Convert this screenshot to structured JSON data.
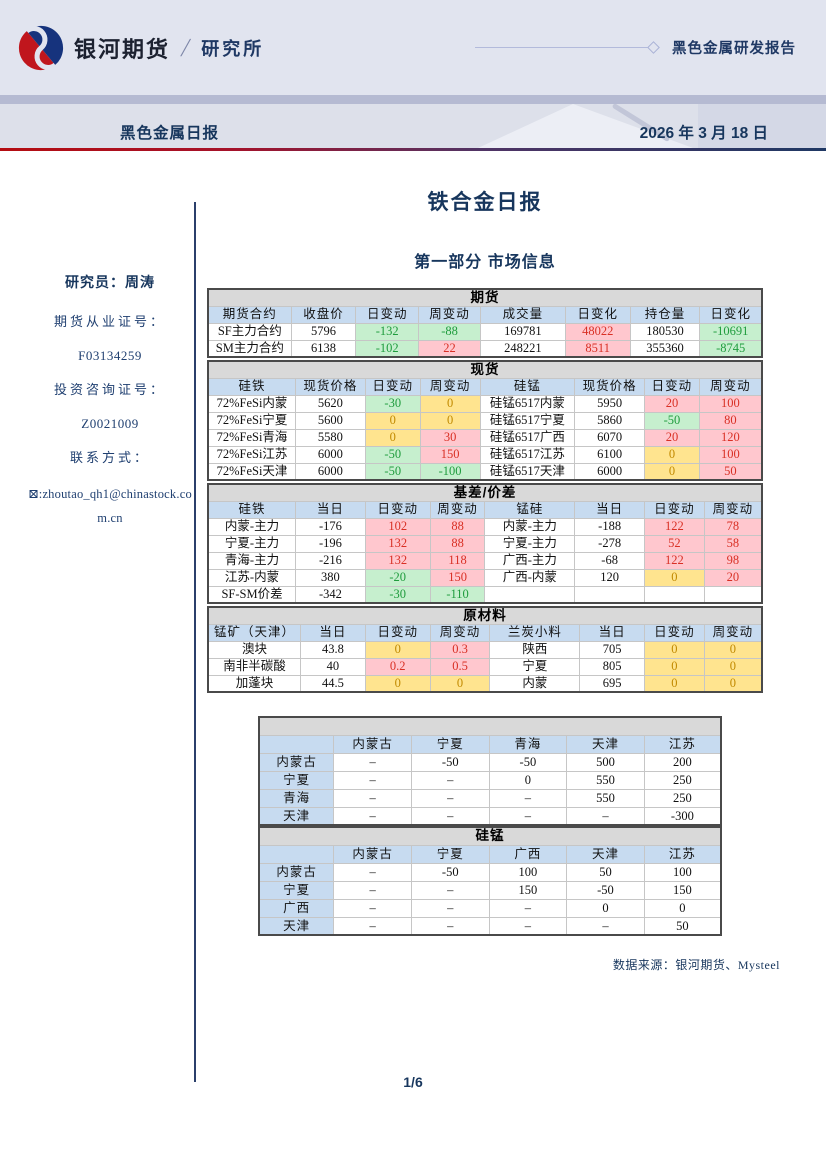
{
  "colors": {
    "accent_navy": "#1f3864",
    "band_lavender": "#e1e4ef",
    "band_divider": "#b5bad2",
    "table_title_gray": "#d9d9d9",
    "table_header_blue": "#c7dbf0",
    "up_red_bg": "#ffc7ce",
    "up_red_text": "#d93025",
    "down_green_bg": "#c6efce",
    "down_green_text": "#1f9c3d",
    "flat_yellow_bg": "#ffe48f",
    "flat_yellow_text": "#c28a00",
    "logo_red": "#c0161d",
    "logo_blue": "#16337d"
  },
  "icons": {
    "email": "⊠",
    "diamond": "connector-diamond",
    "logo": "galaxy-swirl"
  },
  "header": {
    "brand": "银河期货",
    "slash": "/",
    "division": "研究所",
    "report_tag": "黑色金属研发报告",
    "series_title": "黑色金属日报",
    "date": "2026 年 3 月 18 日"
  },
  "sidebar": {
    "researcher": "研究员：周涛",
    "cert1_label": "期货从业证号：",
    "cert1_value": "F03134259",
    "cert2_label": "投资咨询证号：",
    "cert2_value": "Z0021009",
    "contact_label": "联系方式：",
    "email_icon_char": "⊠:",
    "email": "zhoutao_qh1@chinastock.com.cn"
  },
  "main": {
    "doc_title": "铁合金日报",
    "section_title": "第一部分 市场信息",
    "source_note": "数据来源：银河期货、Mysteel",
    "page_number": "1/6"
  },
  "tables": {
    "futures": {
      "title": "期货",
      "widths": [
        15,
        11.7,
        11.3,
        11.2,
        15.3,
        11.7,
        12.6,
        11.2
      ],
      "headers": [
        "期货合约",
        "收盘价",
        "日变动",
        "周变动",
        "成交量",
        "日变化",
        "持仓量",
        "日变化"
      ],
      "rows": [
        [
          {
            "v": "SF主力合约"
          },
          {
            "v": "5796"
          },
          {
            "v": "-132",
            "c": "g"
          },
          {
            "v": "-88",
            "c": "g"
          },
          {
            "v": "169781"
          },
          {
            "v": "48022",
            "c": "r"
          },
          {
            "v": "180530"
          },
          {
            "v": "-10691",
            "c": "g"
          }
        ],
        [
          {
            "v": "SM主力合约"
          },
          {
            "v": "6138"
          },
          {
            "v": "-102",
            "c": "g"
          },
          {
            "v": "22",
            "c": "r"
          },
          {
            "v": "248221"
          },
          {
            "v": "8511",
            "c": "r"
          },
          {
            "v": "355360"
          },
          {
            "v": "-8745",
            "c": "g"
          }
        ]
      ]
    },
    "spot": {
      "title": "现货",
      "widths": [
        15.8,
        12.6,
        9.9,
        10.8,
        17.1,
        12.6,
        9.9,
        11.3
      ],
      "headers": [
        "硅铁",
        "现货价格",
        "日变动",
        "周变动",
        "硅锰",
        "现货价格",
        "日变动",
        "周变动"
      ],
      "rows": [
        [
          {
            "v": "72%FeSi内蒙"
          },
          {
            "v": "5620"
          },
          {
            "v": "-30",
            "c": "g"
          },
          {
            "v": "0",
            "c": "y"
          },
          {
            "v": "硅锰6517内蒙"
          },
          {
            "v": "5950"
          },
          {
            "v": "20",
            "c": "r"
          },
          {
            "v": "100",
            "c": "r"
          }
        ],
        [
          {
            "v": "72%FeSi宁夏"
          },
          {
            "v": "5600"
          },
          {
            "v": "0",
            "c": "y"
          },
          {
            "v": "0",
            "c": "y"
          },
          {
            "v": "硅锰6517宁夏"
          },
          {
            "v": "5860"
          },
          {
            "v": "-50",
            "c": "g"
          },
          {
            "v": "80",
            "c": "r"
          }
        ],
        [
          {
            "v": "72%FeSi青海"
          },
          {
            "v": "5580"
          },
          {
            "v": "0",
            "c": "y"
          },
          {
            "v": "30",
            "c": "r"
          },
          {
            "v": "硅锰6517广西"
          },
          {
            "v": "6070"
          },
          {
            "v": "20",
            "c": "r"
          },
          {
            "v": "120",
            "c": "r"
          }
        ],
        [
          {
            "v": "72%FeSi江苏"
          },
          {
            "v": "6000"
          },
          {
            "v": "-50",
            "c": "g"
          },
          {
            "v": "150",
            "c": "r"
          },
          {
            "v": "硅锰6517江苏"
          },
          {
            "v": "6100"
          },
          {
            "v": "0",
            "c": "y"
          },
          {
            "v": "100",
            "c": "r"
          }
        ],
        [
          {
            "v": "72%FeSi天津"
          },
          {
            "v": "6000"
          },
          {
            "v": "-50",
            "c": "g"
          },
          {
            "v": "-100",
            "c": "g"
          },
          {
            "v": "硅锰6517天津"
          },
          {
            "v": "6000"
          },
          {
            "v": "0",
            "c": "y"
          },
          {
            "v": "50",
            "c": "r"
          }
        ]
      ]
    },
    "basis": {
      "title": "基差/价差",
      "widths": [
        15.8,
        12.6,
        11.7,
        9.9,
        16.2,
        12.6,
        10.8,
        10.4
      ],
      "headers": [
        "硅铁",
        "当日",
        "日变动",
        "周变动",
        "锰硅",
        "当日",
        "日变动",
        "周变动"
      ],
      "rows": [
        [
          {
            "v": "内蒙-主力"
          },
          {
            "v": "-176"
          },
          {
            "v": "102",
            "c": "r"
          },
          {
            "v": "88",
            "c": "r"
          },
          {
            "v": "内蒙-主力"
          },
          {
            "v": "-188"
          },
          {
            "v": "122",
            "c": "r"
          },
          {
            "v": "78",
            "c": "r"
          }
        ],
        [
          {
            "v": "宁夏-主力"
          },
          {
            "v": "-196"
          },
          {
            "v": "132",
            "c": "r"
          },
          {
            "v": "88",
            "c": "r"
          },
          {
            "v": "宁夏-主力"
          },
          {
            "v": "-278"
          },
          {
            "v": "52",
            "c": "r"
          },
          {
            "v": "58",
            "c": "r"
          }
        ],
        [
          {
            "v": "青海-主力"
          },
          {
            "v": "-216"
          },
          {
            "v": "132",
            "c": "r"
          },
          {
            "v": "118",
            "c": "r"
          },
          {
            "v": "广西-主力"
          },
          {
            "v": "-68"
          },
          {
            "v": "122",
            "c": "r"
          },
          {
            "v": "98",
            "c": "r"
          }
        ],
        [
          {
            "v": "江苏-内蒙"
          },
          {
            "v": "380"
          },
          {
            "v": "-20",
            "c": "g"
          },
          {
            "v": "150",
            "c": "r"
          },
          {
            "v": "广西-内蒙"
          },
          {
            "v": "120"
          },
          {
            "v": "0",
            "c": "y"
          },
          {
            "v": "20",
            "c": "r"
          }
        ],
        [
          {
            "v": "SF-SM价差"
          },
          {
            "v": "-342"
          },
          {
            "v": "-30",
            "c": "g"
          },
          {
            "v": "-110",
            "c": "g"
          },
          {
            "v": ""
          },
          {
            "v": ""
          },
          {
            "v": ""
          },
          {
            "v": ""
          }
        ]
      ]
    },
    "raw": {
      "title": "原材料",
      "widths": [
        16.7,
        11.7,
        11.7,
        10.8,
        16.2,
        11.7,
        10.8,
        10.4
      ],
      "headers": [
        "锰矿（天津）",
        "当日",
        "日变动",
        "周变动",
        "兰炭小料",
        "当日",
        "日变动",
        "周变动"
      ],
      "rows": [
        [
          {
            "v": "澳块"
          },
          {
            "v": "43.8"
          },
          {
            "v": "0",
            "c": "y"
          },
          {
            "v": "0.3",
            "c": "r"
          },
          {
            "v": "陕西"
          },
          {
            "v": "705"
          },
          {
            "v": "0",
            "c": "y"
          },
          {
            "v": "0",
            "c": "y"
          }
        ],
        [
          {
            "v": "南非半碳酸"
          },
          {
            "v": "40"
          },
          {
            "v": "0.2",
            "c": "r"
          },
          {
            "v": "0.5",
            "c": "r"
          },
          {
            "v": "宁夏"
          },
          {
            "v": "805"
          },
          {
            "v": "0",
            "c": "y"
          },
          {
            "v": "0",
            "c": "y"
          }
        ],
        [
          {
            "v": "加蓬块"
          },
          {
            "v": "44.5"
          },
          {
            "v": "0",
            "c": "y"
          },
          {
            "v": "0",
            "c": "y"
          },
          {
            "v": "内蒙"
          },
          {
            "v": "695"
          },
          {
            "v": "0",
            "c": "y"
          },
          {
            "v": "0",
            "c": "y"
          }
        ]
      ]
    },
    "fesi_matrix": {
      "title": "",
      "widths": [
        16.2,
        16.8,
        16.8,
        16.8,
        16.8,
        16.6
      ],
      "headers": [
        "",
        "内蒙古",
        "宁夏",
        "青海",
        "天津",
        "江苏"
      ],
      "rows": [
        [
          {
            "v": "内蒙古",
            "c": "h"
          },
          {
            "v": "–"
          },
          {
            "v": "-50"
          },
          {
            "v": "-50"
          },
          {
            "v": "500"
          },
          {
            "v": "200"
          }
        ],
        [
          {
            "v": "宁夏",
            "c": "h"
          },
          {
            "v": "–"
          },
          {
            "v": "–"
          },
          {
            "v": "0"
          },
          {
            "v": "550"
          },
          {
            "v": "250"
          }
        ],
        [
          {
            "v": "青海",
            "c": "h"
          },
          {
            "v": "–"
          },
          {
            "v": "–"
          },
          {
            "v": "–"
          },
          {
            "v": "550"
          },
          {
            "v": "250"
          }
        ],
        [
          {
            "v": "天津",
            "c": "h"
          },
          {
            "v": "–"
          },
          {
            "v": "–"
          },
          {
            "v": "–"
          },
          {
            "v": "–"
          },
          {
            "v": "-300"
          }
        ]
      ]
    },
    "simn_matrix": {
      "title": "硅锰",
      "widths": [
        16.2,
        16.8,
        16.8,
        16.8,
        16.8,
        16.6
      ],
      "headers": [
        "",
        "内蒙古",
        "宁夏",
        "广西",
        "天津",
        "江苏"
      ],
      "rows": [
        [
          {
            "v": "内蒙古",
            "c": "h"
          },
          {
            "v": "–"
          },
          {
            "v": "-50"
          },
          {
            "v": "100"
          },
          {
            "v": "50"
          },
          {
            "v": "100"
          }
        ],
        [
          {
            "v": "宁夏",
            "c": "h"
          },
          {
            "v": "–"
          },
          {
            "v": "–"
          },
          {
            "v": "150"
          },
          {
            "v": "-50"
          },
          {
            "v": "150"
          }
        ],
        [
          {
            "v": "广西",
            "c": "h"
          },
          {
            "v": "–"
          },
          {
            "v": "–"
          },
          {
            "v": "–"
          },
          {
            "v": "0"
          },
          {
            "v": "0"
          }
        ],
        [
          {
            "v": "天津",
            "c": "h"
          },
          {
            "v": "–"
          },
          {
            "v": "–"
          },
          {
            "v": "–"
          },
          {
            "v": "–"
          },
          {
            "v": "50"
          }
        ]
      ]
    }
  }
}
